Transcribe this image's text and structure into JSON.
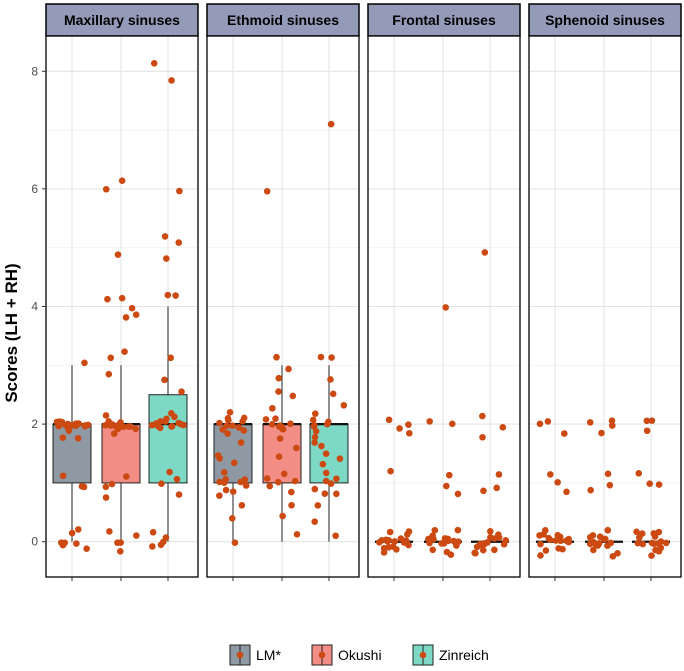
{
  "chart_data": {
    "type": "boxplot",
    "ylabel": "Scores (LH + RH)",
    "xlabel": "",
    "ylim": [
      -0.6,
      8.6
    ],
    "yticks": [
      0,
      2,
      4,
      6,
      8
    ],
    "grid": true,
    "legend_position": "bottom",
    "legend": [
      {
        "name": "LM*",
        "color": "#8E99A3"
      },
      {
        "name": "Okushi",
        "color": "#F28E86"
      },
      {
        "name": "Zinreich",
        "color": "#7DD9C5"
      }
    ],
    "point_color": "#CC4A12",
    "panels": [
      {
        "title": "Maxillary sinuses",
        "boxes": [
          {
            "group": "LM*",
            "q1": 1,
            "median": 2,
            "q3": 2,
            "lower": 0,
            "upper": 3,
            "points": [
              3,
              2,
              2,
              2,
              2,
              2,
              2,
              2,
              2,
              2,
              2,
              2,
              2,
              2,
              2,
              2,
              2,
              2,
              2,
              2,
              2,
              1.9,
              1.9,
              1.8,
              1.8,
              1.1,
              0.9,
              0.9,
              0.2,
              0.1,
              0,
              0,
              -0.05,
              -0.1,
              -0.1
            ]
          },
          {
            "group": "Okushi",
            "q1": 1,
            "median": 2,
            "q3": 2,
            "lower": 0,
            "upper": 3,
            "points": [
              6.15,
              5.95,
              4.85,
              4.15,
              4.1,
              4.0,
              3.9,
              3.8,
              3.2,
              3.1,
              2.8,
              2.1,
              2.0,
              2.0,
              2.0,
              2.0,
              2.0,
              2.0,
              2.0,
              2.0,
              2.0,
              2.0,
              2.0,
              1.9,
              1.9,
              1.8,
              1.1,
              1.0,
              0.9,
              0.8,
              0.2,
              0.1,
              0.0,
              -0.05,
              -0.15
            ]
          },
          {
            "group": "Zinreich",
            "q1": 1,
            "median": 2,
            "q3": 2.5,
            "lower": 0,
            "upper": 4,
            "points": [
              8.1,
              7.85,
              5.95,
              5.15,
              5.1,
              4.8,
              4.15,
              4.15,
              3.1,
              2.8,
              2.55,
              2.2,
              2.1,
              2.1,
              2.0,
              2.0,
              2.0,
              2.0,
              2.0,
              2.0,
              2.0,
              2.0,
              2.0,
              2.0,
              1.95,
              1.9,
              1.2,
              1.1,
              1.0,
              0.8,
              0.2,
              0.1,
              0.0,
              -0.1,
              -0.1
            ]
          }
        ]
      },
      {
        "title": "Ethmoid sinuses",
        "boxes": [
          {
            "group": "LM*",
            "q1": 1,
            "median": 2,
            "q3": 2,
            "lower": 0,
            "upper": 2,
            "points": [
              2.2,
              2.15,
              2.1,
              2.05,
              2,
              2,
              2,
              2,
              1.95,
              1.9,
              1.85,
              1.8,
              1.7,
              1.5,
              1.4,
              1.3,
              1.2,
              1.1,
              1.05,
              1,
              1,
              1,
              0.95,
              0.9,
              0.85,
              0.8,
              0.6,
              0.4,
              0.0
            ]
          },
          {
            "group": "Okushi",
            "q1": 1,
            "median": 2,
            "q3": 2,
            "lower": 0,
            "upper": 3,
            "points": [
              6.0,
              3.1,
              2.9,
              2.75,
              2.6,
              2.5,
              2.3,
              2.1,
              2.05,
              2.0,
              2.0,
              2.0,
              2.0,
              2.0,
              1.95,
              1.9,
              1.8,
              1.6,
              1.4,
              1.2,
              1.1,
              1.0,
              1.0,
              0.9,
              0.8,
              0.6,
              0.4,
              0.15
            ]
          },
          {
            "group": "Zinreich",
            "q1": 1,
            "median": 2,
            "q3": 2,
            "lower": 0,
            "upper": 3,
            "points": [
              7.15,
              3.15,
              3.1,
              2.8,
              2.5,
              2.35,
              2.2,
              2.1,
              2.0,
              2.0,
              2.0,
              2.0,
              1.9,
              1.8,
              1.7,
              1.6,
              1.5,
              1.4,
              1.3,
              1.2,
              1.1,
              1.0,
              1.0,
              0.9,
              0.85,
              0.8,
              0.6,
              0.35,
              0.15
            ]
          }
        ]
      },
      {
        "title": "Frontal sinuses",
        "boxes": [
          {
            "group": "LM*",
            "q1": 0,
            "median": 0,
            "q3": 0,
            "lower": 0,
            "upper": 0,
            "points": [
              2.1,
              2.0,
              1.95,
              1.85,
              1.2,
              0.15,
              0.15,
              0.1,
              0.1,
              0.05,
              0.05,
              0,
              0,
              0,
              0,
              0,
              0,
              0,
              -0.05,
              -0.05,
              -0.1,
              -0.1,
              -0.15,
              -0.2
            ]
          },
          {
            "group": "Okushi",
            "q1": 0,
            "median": 0,
            "q3": 0,
            "lower": 0,
            "upper": 0,
            "points": [
              4.0,
              2.05,
              2.0,
              1.1,
              0.9,
              0.85,
              0.15,
              0.15,
              0.1,
              0.1,
              0.05,
              0.05,
              0,
              0,
              0,
              0,
              0,
              0,
              -0.05,
              -0.05,
              -0.1,
              -0.1,
              -0.15,
              -0.2
            ]
          },
          {
            "group": "Zinreich",
            "q1": 0,
            "median": 0,
            "q3": 0,
            "lower": 0,
            "upper": 0,
            "points": [
              4.95,
              2.1,
              1.9,
              1.8,
              1.1,
              0.95,
              0.85,
              0.15,
              0.1,
              0.1,
              0.05,
              0.05,
              0,
              0,
              0,
              0,
              0,
              0,
              -0.05,
              -0.05,
              -0.1,
              -0.1,
              -0.15,
              -0.2
            ]
          }
        ]
      },
      {
        "title": "Sphenoid sinuses",
        "boxes": [
          {
            "group": "LM*",
            "q1": 0,
            "median": 0,
            "q3": 0,
            "lower": 0,
            "upper": 0,
            "points": [
              2.05,
              2.0,
              1.8,
              1.15,
              1.05,
              0.85,
              0.2,
              0.15,
              0.1,
              0.1,
              0.05,
              0.05,
              0,
              0,
              0,
              0,
              0,
              -0.05,
              -0.05,
              -0.1,
              -0.1,
              -0.15,
              -0.2
            ]
          },
          {
            "group": "Okushi",
            "q1": 0,
            "median": 0,
            "q3": 0,
            "lower": 0,
            "upper": 0,
            "points": [
              2.1,
              2.0,
              1.95,
              1.85,
              1.2,
              1.0,
              0.85,
              0.15,
              0.1,
              0.1,
              0.05,
              0.05,
              0,
              0,
              0,
              0,
              0,
              -0.05,
              -0.05,
              -0.1,
              -0.1,
              -0.15,
              -0.2
            ]
          },
          {
            "group": "Zinreich",
            "q1": 0,
            "median": 0,
            "q3": 0,
            "lower": 0,
            "upper": 0,
            "points": [
              2.1,
              2.05,
              1.85,
              1.2,
              1.0,
              0.95,
              0.15,
              0.15,
              0.1,
              0.1,
              0.05,
              0.05,
              0,
              0,
              0,
              0,
              0,
              -0.05,
              -0.05,
              -0.1,
              -0.1,
              -0.15,
              -0.2
            ]
          }
        ]
      }
    ]
  }
}
